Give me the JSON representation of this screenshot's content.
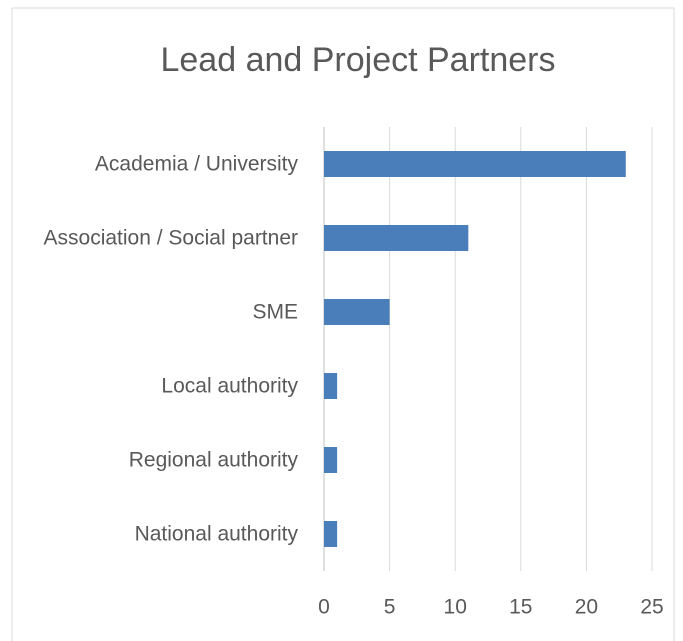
{
  "chart_data": {
    "type": "bar",
    "orientation": "horizontal",
    "title": "Lead and Project Partners",
    "categories": [
      "Academia / University",
      "Association / Social partner",
      "SME",
      "Local authority",
      "Regional authority",
      "National authority"
    ],
    "values": [
      23,
      11,
      5,
      1,
      1,
      1
    ],
    "color": "#4a7ebb",
    "xlim": [
      0,
      25
    ],
    "xticks": [
      0,
      5,
      10,
      15,
      20,
      25
    ],
    "grid": true
  }
}
